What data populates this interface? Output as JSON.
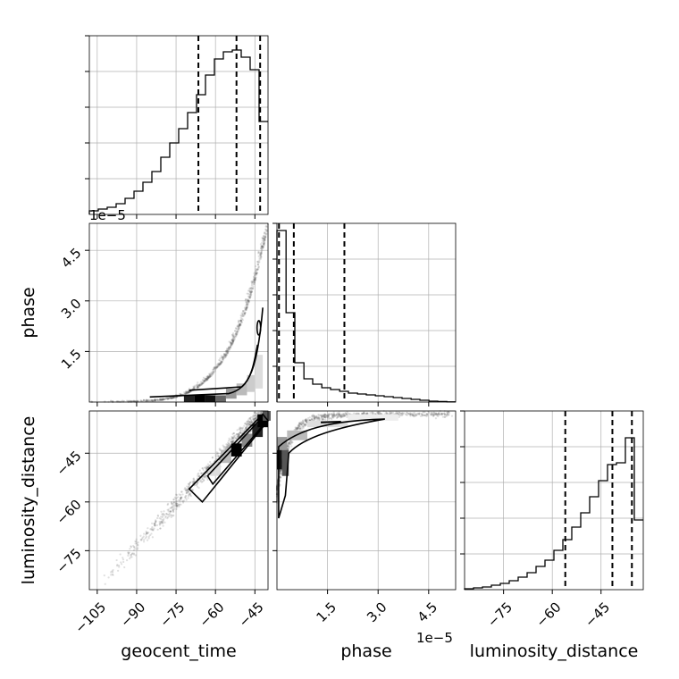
{
  "chart_data": {
    "type": "corner",
    "parameters": [
      "geocent_time",
      "phase",
      "luminosity_distance"
    ],
    "axes": {
      "geocent_time": {
        "label": "geocent_time",
        "range": [
          -108,
          -40
        ],
        "ticks": [
          -105,
          -90,
          -75,
          -60,
          -45
        ]
      },
      "phase": {
        "label": "phase",
        "range": [
          0,
          5.3
        ],
        "ticks": [
          1.5,
          3.0,
          4.5
        ],
        "offset_text": "1e-5"
      },
      "luminosity_distance": {
        "label": "luminosity_distance",
        "range": [
          -87,
          -32
        ],
        "ticks": [
          -75,
          -60,
          -45
        ]
      }
    },
    "offset_texts": {
      "geocent_time_y": "1e−5",
      "phase_x": "1e−5"
    },
    "tick_labels": {
      "geocent_time": [
        "−105",
        "−90",
        "−75",
        "−60",
        "−45"
      ],
      "phase_y": [
        "4.5",
        "3.0",
        "1.5"
      ],
      "phase_x": [
        "1.5",
        "3.0",
        "4.5"
      ],
      "luminosity_distance_y": [
        "−45",
        "−60",
        "−75"
      ],
      "luminosity_distance_x": [
        "−75",
        "−60",
        "−45"
      ]
    },
    "histograms": {
      "geocent_time": {
        "bin_edges": [
          -108,
          -104.6,
          -101.2,
          -97.8,
          -94.4,
          -91,
          -87.6,
          -84.2,
          -80.8,
          -77.4,
          -74,
          -70.6,
          -67.2,
          -63.8,
          -60.4,
          -57,
          -53.6,
          -50.2,
          -46.8,
          -43.4,
          -40
        ],
        "counts": [
          2,
          3,
          4,
          6,
          9,
          13,
          18,
          24,
          32,
          40,
          48,
          57,
          67,
          78,
          87,
          91,
          92,
          88,
          81,
          52
        ],
        "quantiles": [
          -66.5,
          -52.0,
          -43.0
        ]
      },
      "phase": {
        "bin_edges": [
          0,
          0.27,
          0.53,
          0.8,
          1.06,
          1.33,
          1.59,
          1.86,
          2.12,
          2.39,
          2.65,
          2.92,
          3.18,
          3.45,
          3.71,
          3.98,
          4.24,
          4.51,
          4.77,
          5.04,
          5.3
        ],
        "counts": [
          96,
          50,
          22,
          13,
          10,
          8,
          7,
          6,
          5,
          4.5,
          4,
          3.5,
          3,
          2.5,
          2,
          1.5,
          1,
          0.5,
          0.3,
          0.1
        ],
        "quantiles": [
          0.06,
          0.5,
          2.0
        ]
      },
      "luminosity_distance": {
        "bin_edges": [
          -87,
          -84.25,
          -81.5,
          -78.75,
          -76,
          -73.25,
          -70.5,
          -67.75,
          -65,
          -62.25,
          -59.5,
          -56.75,
          -54,
          -51.25,
          -48.5,
          -45.75,
          -43,
          -40.25,
          -37.5,
          -34.75,
          -32
        ],
        "counts": [
          0.5,
          1,
          1.5,
          2.5,
          3.5,
          5,
          7,
          9.5,
          13,
          16.5,
          22,
          28,
          35,
          43,
          52,
          61,
          70,
          71,
          85,
          39
        ],
        "quantiles": [
          -56.0,
          -41.5,
          -35.5
        ]
      }
    },
    "scatter_relation": {
      "phase_vs_geocent_time": "phase ≈ 5.2 × ((t + 108)/68)^5 (×1e-5)",
      "luminosity_distance_vs_geocent_time": "d ≈ 0.86 × t + 4 (linear)",
      "luminosity_distance_vs_phase": "d saturates toward −33 as phase grows"
    }
  }
}
